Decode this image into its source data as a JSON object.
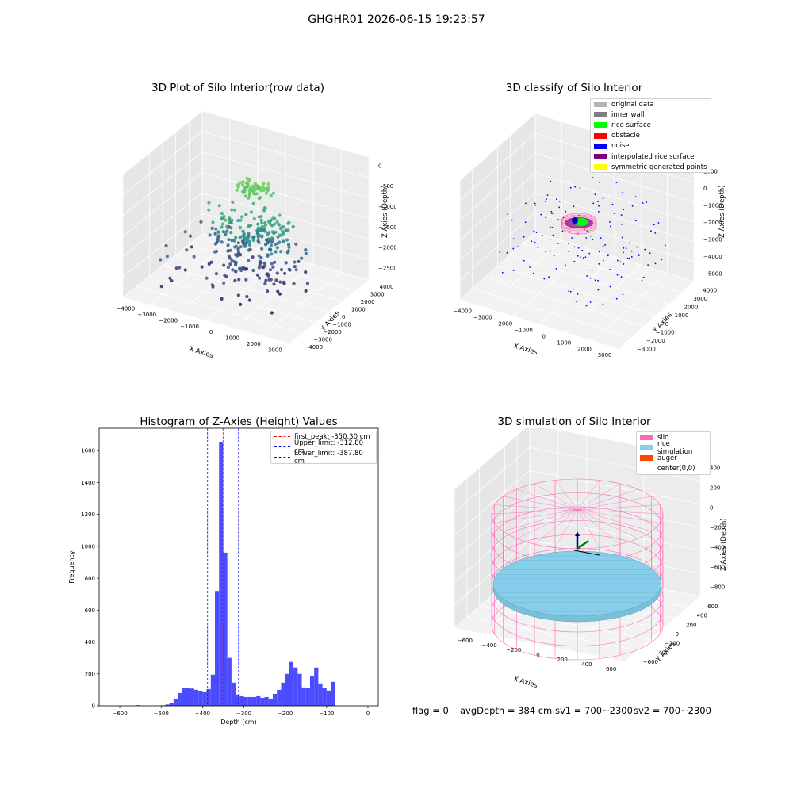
{
  "suptitle": "GHGHR01 2026-06-15 19:23:57",
  "chart_data": [
    {
      "type": "scatter",
      "title": "3D Plot of Silo Interior(row data)",
      "xlabel": "X Axies",
      "ylabel": "Y Axies",
      "zlabel": "Z Axies (Depth)",
      "x_ticks": [
        -4000,
        -3000,
        -2000,
        -1000,
        0,
        1000,
        2000,
        3000
      ],
      "y_ticks": [
        -4000,
        -3000,
        -2000,
        -1000,
        0,
        1000,
        2000,
        3000,
        4000
      ],
      "z_ticks": [
        0,
        -500,
        -1000,
        -1500,
        -2000,
        -2500
      ],
      "colormap": "viridis (by depth)"
    },
    {
      "type": "scatter",
      "title": "3D classify of Silo Interior",
      "x_ticks": [
        -4000,
        -3000,
        -2000,
        -1000,
        0,
        1000,
        2000,
        3000
      ],
      "y_ticks": [
        -3000,
        -2000,
        -1000,
        0,
        1000,
        2000,
        3000,
        4000
      ],
      "z_ticks": [
        1000,
        0,
        -1000,
        -2000,
        -3000,
        -4000,
        -5000
      ],
      "xlabel": "X Axies",
      "ylabel": "Y Axies",
      "zlabel": "Z Axies (Depth)",
      "legend": [
        {
          "label": "original data",
          "color": "#b4b4b4"
        },
        {
          "label": "inner wall",
          "color": "#7f7f7f"
        },
        {
          "label": "rice surface",
          "color": "#00ff00"
        },
        {
          "label": "obstacle",
          "color": "#ff0000"
        },
        {
          "label": "noise",
          "color": "#0000ff"
        },
        {
          "label": "interpolated rice surface",
          "color": "#800080"
        },
        {
          "label": "symmetric generated points",
          "color": "#ffff00"
        }
      ]
    },
    {
      "type": "bar",
      "title": "Histogram of Z-Axies (Height) Values",
      "xlabel": "Depth (cm)",
      "ylabel": "Frequency",
      "xlim": [
        -650,
        25
      ],
      "ylim": [
        0,
        1740
      ],
      "x_ticks": [
        -600,
        -500,
        -400,
        -300,
        -200,
        -100,
        0
      ],
      "y_ticks": [
        0,
        200,
        400,
        600,
        800,
        1000,
        1200,
        1400,
        1600
      ],
      "bin_width": 10,
      "bar_color": "#4b4bff",
      "bins": [
        [
          -560,
          4
        ],
        [
          -500,
          3
        ],
        [
          -490,
          8
        ],
        [
          -480,
          20
        ],
        [
          -470,
          45
        ],
        [
          -460,
          80
        ],
        [
          -450,
          112
        ],
        [
          -440,
          112
        ],
        [
          -430,
          108
        ],
        [
          -420,
          100
        ],
        [
          -410,
          90
        ],
        [
          -400,
          85
        ],
        [
          -390,
          105
        ],
        [
          -380,
          195
        ],
        [
          -370,
          720
        ],
        [
          -360,
          1655
        ],
        [
          -350,
          960
        ],
        [
          -340,
          300
        ],
        [
          -330,
          145
        ],
        [
          -320,
          70
        ],
        [
          -310,
          60
        ],
        [
          -300,
          55
        ],
        [
          -290,
          55
        ],
        [
          -280,
          55
        ],
        [
          -270,
          60
        ],
        [
          -260,
          50
        ],
        [
          -250,
          55
        ],
        [
          -240,
          45
        ],
        [
          -230,
          75
        ],
        [
          -220,
          100
        ],
        [
          -210,
          145
        ],
        [
          -200,
          200
        ],
        [
          -190,
          275
        ],
        [
          -180,
          240
        ],
        [
          -170,
          200
        ],
        [
          -160,
          115
        ],
        [
          -150,
          110
        ],
        [
          -140,
          185
        ],
        [
          -130,
          240
        ],
        [
          -120,
          140
        ],
        [
          -110,
          110
        ],
        [
          -100,
          95
        ],
        [
          -90,
          150
        ]
      ],
      "lines": [
        {
          "label": "first_peak: -350.30 cm",
          "x": -350.3,
          "color": "#ff0000"
        },
        {
          "label": "Upper_limit: -312.80 cm",
          "x": -312.8,
          "color": "#0000ff"
        },
        {
          "label": "Lower_limit: -387.80 cm",
          "x": -387.8,
          "color": "#0000ff"
        }
      ]
    },
    {
      "type": "surface",
      "title": "3D simulation of Silo Interior",
      "xlabel": "X Axies",
      "ylabel": "Y Axies",
      "zlabel": "Z Axies (Depth)",
      "x_ticks": [
        -600,
        -400,
        -200,
        0,
        200,
        400,
        600
      ],
      "y_ticks": [
        -600,
        -400,
        -200,
        0,
        200,
        400,
        600
      ],
      "z_ticks": [
        400,
        200,
        0,
        -200,
        -400,
        -600,
        -800
      ],
      "legend": [
        {
          "label": "silo",
          "color": "#ff69b4"
        },
        {
          "label": "rice simulation",
          "color": "#87ceeb"
        },
        {
          "label": "auger",
          "color": "#ff4500"
        },
        {
          "label": "center(0,0)",
          "color": ""
        }
      ]
    }
  ],
  "status": {
    "flag": "flag = 0",
    "avg": "avgDepth = 384 cm",
    "sv1": "sv1 = 700~2300",
    "sv2": "sv2 = 700~2300"
  }
}
